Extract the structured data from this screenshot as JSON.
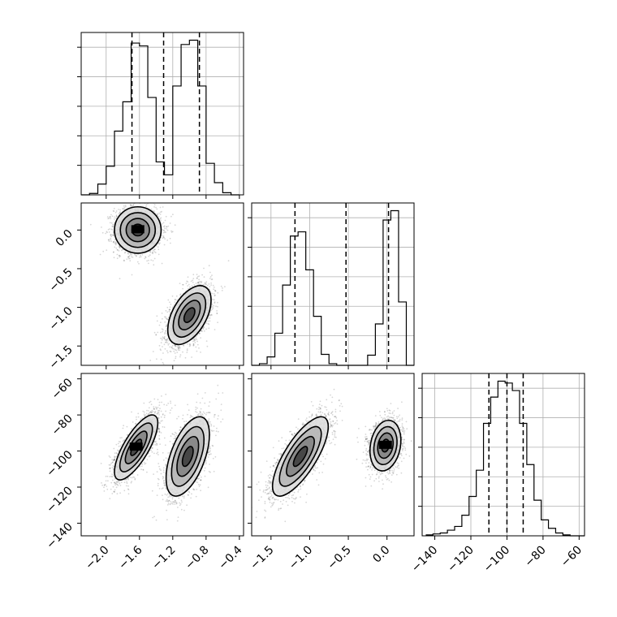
{
  "chart_data": {
    "type": "corner",
    "title": "",
    "params": [
      {
        "range": [
          -2.3,
          -0.35
        ],
        "ticks": [
          -2.0,
          -1.6,
          -1.2,
          -0.8,
          -0.4
        ],
        "tick_labels": [
          "−2.0",
          "−1.6",
          "−1.2",
          "−0.8",
          "−0.4"
        ],
        "quantiles": [
          -1.69,
          -1.31,
          -0.88
        ]
      },
      {
        "range": [
          -1.75,
          0.35
        ],
        "ticks": [
          -1.5,
          -1.0,
          -0.5,
          0.0
        ],
        "tick_labels": [
          "−1.5",
          "−1.0",
          "−0.5",
          "0.0"
        ],
        "quantiles": [
          -1.19,
          -0.53,
          0.02
        ]
      },
      {
        "range": [
          -147,
          -57
        ],
        "ticks": [
          -140,
          -120,
          -100,
          -80,
          -60
        ],
        "tick_labels": [
          "−140",
          "−120",
          "−100",
          "−80",
          "−60"
        ],
        "quantiles": [
          -110,
          -100,
          -91
        ]
      }
    ],
    "histograms": [
      {
        "param": 0,
        "bin_edges": [
          -2.3,
          -2.2,
          -2.1,
          -2.0,
          -1.9,
          -1.8,
          -1.7,
          -1.6,
          -1.5,
          -1.4,
          -1.3,
          -1.2,
          -1.1,
          -1.0,
          -0.9,
          -0.8,
          -0.7,
          -0.6,
          -0.5,
          -0.4
        ],
        "counts": [
          0,
          2,
          15,
          40,
          89,
          130,
          212,
          208,
          136,
          46,
          28,
          152,
          210,
          216,
          152,
          44,
          17,
          3,
          0
        ]
      },
      {
        "param": 1,
        "bin_edges": [
          -1.75,
          -1.65,
          -1.55,
          -1.45,
          -1.35,
          -1.25,
          -1.15,
          -1.05,
          -0.95,
          -0.85,
          -0.75,
          -0.65,
          -0.55,
          -0.45,
          -0.35,
          -0.25,
          -0.15,
          -0.05,
          0.05,
          0.15,
          0.25,
          0.35
        ],
        "counts": [
          0,
          2,
          10,
          38,
          95,
          153,
          158,
          113,
          58,
          13,
          2,
          0,
          0,
          0,
          0,
          12,
          49,
          172,
          183,
          75,
          0
        ]
      },
      {
        "param": 2,
        "bin_edges": [
          -145,
          -141,
          -137,
          -133,
          -129,
          -125,
          -121,
          -117,
          -113,
          -109,
          -105,
          -101,
          -97,
          -93,
          -89,
          -85,
          -81,
          -77,
          -73,
          -69,
          -65,
          -61,
          -57
        ],
        "counts": [
          1,
          2,
          3,
          6,
          10,
          22,
          42,
          70,
          120,
          148,
          165,
          163,
          155,
          120,
          76,
          38,
          17,
          8,
          3,
          1,
          0,
          0
        ]
      }
    ],
    "clusters_2d": [
      {
        "x_param": 0,
        "y_param": 1,
        "blobs": [
          {
            "mean": [
              -1.62,
              0.0
            ],
            "sd": [
              0.14,
              0.15
            ],
            "corr": 0.0,
            "peak": "high"
          },
          {
            "mean": [
              -1.0,
              -1.1
            ],
            "sd": [
              0.13,
              0.19
            ],
            "corr": 0.5,
            "peak": "medium"
          }
        ]
      },
      {
        "x_param": 0,
        "y_param": 2,
        "blobs": [
          {
            "mean": [
              -1.64,
              -98
            ],
            "sd": [
              0.13,
              9
            ],
            "corr": 0.75,
            "peak": "high"
          },
          {
            "mean": [
              -1.02,
              -103
            ],
            "sd": [
              0.13,
              11
            ],
            "corr": 0.55,
            "peak": "medium"
          }
        ]
      },
      {
        "x_param": 1,
        "y_param": 2,
        "blobs": [
          {
            "mean": [
              -1.12,
              -103
            ],
            "sd": [
              0.18,
              11
            ],
            "corr": 0.75,
            "peak": "medium"
          },
          {
            "mean": [
              -0.02,
              -97
            ],
            "sd": [
              0.1,
              7
            ],
            "corr": 0.2,
            "peak": "high"
          }
        ]
      }
    ],
    "contour_levels_sigma": [
      0.5,
      1.0,
      1.5,
      2.0
    ],
    "grid": true
  }
}
